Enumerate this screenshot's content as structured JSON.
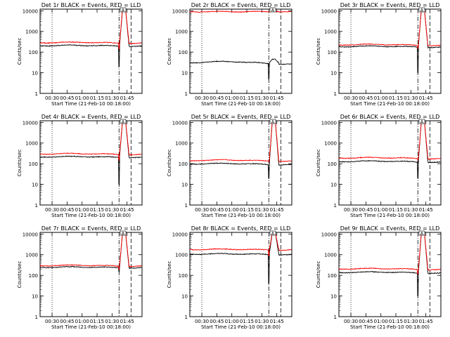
{
  "figure": {
    "xlabel": "Start Time (21-Feb-10 00:18:00)",
    "ylabel": "Counts/sec",
    "x_tick_labels": [
      "00:30",
      "00:45",
      "01:00",
      "01:15",
      "01:30",
      "01:45"
    ],
    "y_tick_labels": [
      "1",
      "10",
      "100",
      "1000",
      "10000"
    ],
    "peak_marker_label": "A"
  },
  "chart_data": [
    {
      "type": "line",
      "title": "Det 1r BLACK = Events, RED = LLD",
      "xlabel": "Start Time (21-Feb-10 00:18:00)",
      "ylabel": "Counts/sec",
      "xlim": [
        18,
        120
      ],
      "ylim": [
        1,
        12000
      ],
      "yscale": "log",
      "x_unit": "minutes after 00:00",
      "series": [
        {
          "name": "Events",
          "color": "#000000",
          "base": 200,
          "ripple": 0.06,
          "peak": 12000,
          "dip": 20
        },
        {
          "name": "LLD",
          "color": "#ff0000",
          "base": 280,
          "ripple": 0.06,
          "peak": 12000,
          "dip": 150
        }
      ]
    },
    {
      "type": "line",
      "title": "Det 2r BLACK = Events, RED = LLD",
      "xlabel": "Start Time (21-Feb-10 00:18:00)",
      "ylabel": "Counts/sec",
      "xlim": [
        18,
        120
      ],
      "ylim": [
        1,
        12000
      ],
      "yscale": "log",
      "x_unit": "minutes after 00:00",
      "series": [
        {
          "name": "Events",
          "color": "#000000",
          "base": 30,
          "ripple": 0.15,
          "peak": 45,
          "dip": 5
        },
        {
          "name": "LLD",
          "color": "#ff0000",
          "base": 9000,
          "ripple": 0.01,
          "peak": 9500,
          "dip": 9000
        }
      ]
    },
    {
      "type": "line",
      "title": "Det 3r BLACK = Events, RED = LLD",
      "xlabel": "Start Time (21-Feb-10 00:18:00)",
      "ylabel": "Counts/sec",
      "xlim": [
        18,
        120
      ],
      "ylim": [
        1,
        12000
      ],
      "yscale": "log",
      "x_unit": "minutes after 00:00",
      "series": [
        {
          "name": "Events",
          "color": "#000000",
          "base": 180,
          "ripple": 0.07,
          "peak": 12000,
          "dip": 10
        },
        {
          "name": "LLD",
          "color": "#ff0000",
          "base": 220,
          "ripple": 0.07,
          "peak": 12000,
          "dip": 150
        }
      ]
    },
    {
      "type": "line",
      "title": "Det 4r BLACK = Events, RED = LLD",
      "xlabel": "Start Time (21-Feb-10 00:18:00)",
      "ylabel": "Counts/sec",
      "xlim": [
        18,
        120
      ],
      "ylim": [
        1,
        12000
      ],
      "yscale": "log",
      "x_unit": "minutes after 00:00",
      "series": [
        {
          "name": "Events",
          "color": "#000000",
          "base": 210,
          "ripple": 0.06,
          "peak": 12000,
          "dip": 10
        },
        {
          "name": "LLD",
          "color": "#ff0000",
          "base": 290,
          "ripple": 0.06,
          "peak": 12000,
          "dip": 150
        }
      ]
    },
    {
      "type": "line",
      "title": "Det 5r BLACK = Events, RED = LLD",
      "xlabel": "Start Time (21-Feb-10 00:18:00)",
      "ylabel": "Counts/sec",
      "xlim": [
        18,
        120
      ],
      "ylim": [
        1,
        12000
      ],
      "yscale": "log",
      "x_unit": "minutes after 00:00",
      "series": [
        {
          "name": "Events",
          "color": "#000000",
          "base": 95,
          "ripple": 0.08,
          "peak": 12000,
          "dip": 20
        },
        {
          "name": "LLD",
          "color": "#ff0000",
          "base": 140,
          "ripple": 0.08,
          "peak": 12000,
          "dip": 120
        }
      ]
    },
    {
      "type": "line",
      "title": "Det 6r BLACK = Events, RED = LLD",
      "xlabel": "Start Time (21-Feb-10 00:18:00)",
      "ylabel": "Counts/sec",
      "xlim": [
        18,
        120
      ],
      "ylim": [
        1,
        12000
      ],
      "yscale": "log",
      "x_unit": "minutes after 00:00",
      "series": [
        {
          "name": "Events",
          "color": "#000000",
          "base": 125,
          "ripple": 0.07,
          "peak": 12000,
          "dip": 20
        },
        {
          "name": "LLD",
          "color": "#ff0000",
          "base": 185,
          "ripple": 0.07,
          "peak": 12000,
          "dip": 150
        }
      ]
    },
    {
      "type": "line",
      "title": "Det 7r BLACK = Events, RED = LLD",
      "xlabel": "Start Time (21-Feb-10 00:18:00)",
      "ylabel": "Counts/sec",
      "xlim": [
        18,
        120
      ],
      "ylim": [
        1,
        12000
      ],
      "yscale": "log",
      "x_unit": "minutes after 00:00",
      "series": [
        {
          "name": "Events",
          "color": "#000000",
          "base": 240,
          "ripple": 0.06,
          "peak": 12000,
          "dip": 150
        },
        {
          "name": "LLD",
          "color": "#ff0000",
          "base": 290,
          "ripple": 0.06,
          "peak": 12000,
          "dip": 200
        }
      ]
    },
    {
      "type": "line",
      "title": "Det 8r BLACK = Events, RED = LLD",
      "xlabel": "Start Time (21-Feb-10 00:18:00)",
      "ylabel": "Counts/sec",
      "xlim": [
        18,
        120
      ],
      "ylim": [
        1,
        12000
      ],
      "yscale": "log",
      "x_unit": "minutes after 00:00",
      "series": [
        {
          "name": "Events",
          "color": "#000000",
          "base": 1050,
          "ripple": 0.05,
          "peak": 12000,
          "dip": 40
        },
        {
          "name": "LLD",
          "color": "#ff0000",
          "base": 1750,
          "ripple": 0.05,
          "peak": 12000,
          "dip": 900
        }
      ]
    },
    {
      "type": "line",
      "title": "Det 9r BLACK = Events, RED = LLD",
      "xlabel": "Start Time (21-Feb-10 00:18:00)",
      "ylabel": "Counts/sec",
      "xlim": [
        18,
        120
      ],
      "ylim": [
        1,
        12000
      ],
      "yscale": "log",
      "x_unit": "minutes after 00:00",
      "series": [
        {
          "name": "Events",
          "color": "#000000",
          "base": 135,
          "ripple": 0.07,
          "peak": 12000,
          "dip": 10
        },
        {
          "name": "LLD",
          "color": "#ff0000",
          "base": 200,
          "ripple": 0.07,
          "peak": 12000,
          "dip": 120
        }
      ]
    }
  ],
  "markers": {
    "dotted_time_minutes": 30,
    "dashdot_time_minutes": 97,
    "dashed_time_minutes": 109,
    "peak_label_time_minutes": 101
  }
}
